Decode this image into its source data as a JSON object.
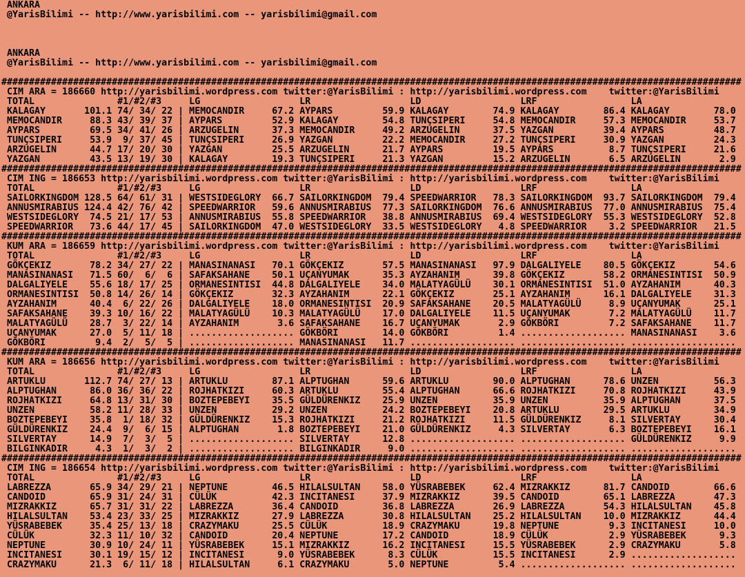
{
  "screen": {
    "background_color": "#E9967A",
    "text_color": "#000000"
  },
  "preamble": {
    "city": "ANKARA",
    "contact": "@YarisBilimi -- http://www.yarisbilimi.com -- yarisbilimi@gmail.com"
  },
  "links": {
    "wordpress_url": "http://yarisbilimi.wordpress.com",
    "twitter": "twitter:@YarisBilimi",
    "title_colon": ":",
    "separator_char": "#"
  },
  "table": {
    "headers": [
      "TOTAL",
      "#1/#2/#3",
      "LG",
      "LR",
      "LD",
      "LRF",
      "LA"
    ],
    "column_keys": [
      "LG",
      "LR",
      "LD",
      "LRF",
      "LA"
    ]
  },
  "sections": [
    {
      "code": "CIM ARA",
      "id": "186660",
      "rows": [
        {
          "name": "KALAGAY",
          "total": "101.1",
          "p": [
            "74",
            "34",
            "22"
          ],
          "LG": [
            "MEMOCANDIR",
            "67.2"
          ],
          "LR": [
            "AYPARS",
            "59.9"
          ],
          "LD": [
            "KALAGAY",
            "74.9"
          ],
          "LRF": [
            "KALAGAY",
            "86.4"
          ],
          "LA": [
            "KALAGAY",
            "78.0"
          ]
        },
        {
          "name": "MEMOCANDIR",
          "total": "88.3",
          "p": [
            "43",
            "39",
            "37"
          ],
          "LG": [
            "AYPARS",
            "52.9"
          ],
          "LR": [
            "KALAGAY",
            "54.8"
          ],
          "LD": [
            "TUNÇSIPERI",
            "54.8"
          ],
          "LRF": [
            "MEMOCANDIR",
            "57.3"
          ],
          "LA": [
            "MEMOCANDIR",
            "53.7"
          ]
        },
        {
          "name": "AYPARS",
          "total": "69.5",
          "p": [
            "34",
            "41",
            "26"
          ],
          "LG": [
            "ARZUGELIN",
            "37.3"
          ],
          "LR": [
            "MEMOCANDIR",
            "49.2"
          ],
          "LD": [
            "ARZUGELIN",
            "37.5"
          ],
          "LRF": [
            "YAZGAN",
            "39.4"
          ],
          "LA": [
            "AYPARS",
            "48.7"
          ]
        },
        {
          "name": "TUNÇSIPERI",
          "total": "53.9",
          "p": [
            "9",
            "37",
            "45"
          ],
          "LG": [
            "TUNÇSIPERI",
            "26.9"
          ],
          "LR": [
            "YAZGAN",
            "22.2"
          ],
          "LD": [
            "MEMOCANDIR",
            "27.2"
          ],
          "LRF": [
            "TUNÇSIPERI",
            "30.9"
          ],
          "LA": [
            "YAZGAN",
            "24.3"
          ]
        },
        {
          "name": "ARZUGELIN",
          "total": "44.7",
          "p": [
            "17",
            "20",
            "30"
          ],
          "LG": [
            "YAZGAN",
            "25.5"
          ],
          "LR": [
            "ARZUGELIN",
            "21.7"
          ],
          "LD": [
            "AYPARS",
            "19.5"
          ],
          "LRF": [
            "AYPARS",
            "8.7"
          ],
          "LA": [
            "TUNÇSIPERI",
            "21.6"
          ]
        },
        {
          "name": "YAZGAN",
          "total": "43.5",
          "p": [
            "13",
            "19",
            "30"
          ],
          "LG": [
            "KALAGAY",
            "19.3"
          ],
          "LR": [
            "TUNÇSIPERI",
            "21.3"
          ],
          "LD": [
            "YAZGAN",
            "15.2"
          ],
          "LRF": [
            "ARZUGELIN",
            "6.5"
          ],
          "LA": [
            "ARZUGELIN",
            "2.9"
          ]
        }
      ]
    },
    {
      "code": "CIM ING",
      "id": "186653",
      "rows": [
        {
          "name": "SAILORKINGDOM",
          "total": "128.5",
          "p": [
            "64",
            "61",
            "31"
          ],
          "LG": [
            "WESTSIDEGLORY",
            "66.7"
          ],
          "LR": [
            "SAILORKINGDOM",
            "79.4"
          ],
          "LD": [
            "SPEEDWARRIOR",
            "78.3"
          ],
          "LRF": [
            "SAILORKINGDOM",
            "93.7"
          ],
          "LA": [
            "SAILORKINGDOM",
            "79.4"
          ]
        },
        {
          "name": "ANNUSMIRABIUS",
          "total": "124.4",
          "p": [
            "42",
            "76",
            "42"
          ],
          "LG": [
            "SPEEDWARRIOR",
            "59.6"
          ],
          "LR": [
            "ANNUSMIRABIUS",
            "77.3"
          ],
          "LD": [
            "SAILORKINGDOM",
            "76.6"
          ],
          "LRF": [
            "ANNUSMIRABIUS",
            "77.0"
          ],
          "LA": [
            "ANNUSMIRABIUS",
            "75.4"
          ]
        },
        {
          "name": "WESTSIDEGLORY",
          "total": "74.5",
          "p": [
            "21",
            "17",
            "53"
          ],
          "LG": [
            "ANNUSMIRABIUS",
            "55.8"
          ],
          "LR": [
            "SPEEDWARRIOR",
            "38.8"
          ],
          "LD": [
            "ANNUSMIRABIUS",
            "69.4"
          ],
          "LRF": [
            "WESTSIDEGLORY",
            "55.3"
          ],
          "LA": [
            "WESTSIDEGLORY",
            "52.8"
          ]
        },
        {
          "name": "SPEEDWARRIOR",
          "total": "73.6",
          "p": [
            "44",
            "17",
            "45"
          ],
          "LG": [
            "SAILORKINGDOM",
            "47.0"
          ],
          "LR": [
            "WESTSIDEGLORY",
            "33.5"
          ],
          "LD": [
            "WESTSIDEGLORY",
            "4.8"
          ],
          "LRF": [
            "SPEEDWARRIOR",
            "3.2"
          ],
          "LA": [
            "SPEEDWARRIOR",
            "21.5"
          ]
        }
      ]
    },
    {
      "code": "KUM ARA",
      "id": "186659",
      "rows": [
        {
          "name": "GÖKÇEKIZ",
          "total": "78.2",
          "p": [
            "34",
            "27",
            "22"
          ],
          "LG": [
            "MANASINANASI",
            "70.1"
          ],
          "LR": [
            "GÖKÇEKIZ",
            "57.5"
          ],
          "LD": [
            "MANASINANASI",
            "97.9"
          ],
          "LRF": [
            "DALGALIYELE",
            "80.5"
          ],
          "LA": [
            "GÖKÇEKIZ",
            "54.6"
          ]
        },
        {
          "name": "MANASINANASI",
          "total": "71.5",
          "p": [
            "60",
            "6",
            "6"
          ],
          "LG": [
            "SAFAKSAHANE",
            "50.1"
          ],
          "LR": [
            "UÇANYUMAK",
            "35.3"
          ],
          "LD": [
            "AYZAHANIM",
            "39.8"
          ],
          "LRF": [
            "GÖKÇEKIZ",
            "58.2"
          ],
          "LA": [
            "ORMANESINTISI",
            "50.9"
          ]
        },
        {
          "name": "DALGALIYELE",
          "total": "55.6",
          "p": [
            "18",
            "17",
            "25"
          ],
          "LG": [
            "ORMANESINTISI",
            "44.8"
          ],
          "LR": [
            "DALGALIYELE",
            "34.0"
          ],
          "LD": [
            "MALATYAGÜLÜ",
            "30.1"
          ],
          "LRF": [
            "ORMANESINTISI",
            "51.0"
          ],
          "LA": [
            "AYZAHANIM",
            "40.3"
          ]
        },
        {
          "name": "ORMANESINTISI",
          "total": "50.8",
          "p": [
            "14",
            "26",
            "14"
          ],
          "LG": [
            "GÖKÇEKIZ",
            "32.3"
          ],
          "LR": [
            "AYZAHANIM",
            "22.1"
          ],
          "LD": [
            "GÖKÇEKIZ",
            "25.1"
          ],
          "LRF": [
            "AYZAHANIM",
            "16.1"
          ],
          "LA": [
            "DALGALIYELE",
            "31.3"
          ]
        },
        {
          "name": "AYZAHANIM",
          "total": "40.4",
          "p": [
            "6",
            "22",
            "26"
          ],
          "LG": [
            "DALGALIYELE",
            "18.0"
          ],
          "LR": [
            "ORMANESINTISI",
            "20.9"
          ],
          "LD": [
            "SAFAKSAHANE",
            "20.5"
          ],
          "LRF": [
            "MALATYAGÜLÜ",
            "8.9"
          ],
          "LA": [
            "UÇANYUMAK",
            "25.1"
          ]
        },
        {
          "name": "SAFAKSAHANE",
          "total": "39.3",
          "p": [
            "10",
            "16",
            "22"
          ],
          "LG": [
            "MALATYAGÜLÜ",
            "10.3"
          ],
          "LR": [
            "MALATYAGÜLÜ",
            "17.0"
          ],
          "LD": [
            "DALGALIYELE",
            "11.5"
          ],
          "LRF": [
            "UÇANYUMAK",
            "7.2"
          ],
          "LA": [
            "MALATYAGÜLÜ",
            "11.7"
          ]
        },
        {
          "name": "MALATYAGÜLÜ",
          "total": "28.7",
          "p": [
            "3",
            "22",
            "14"
          ],
          "LG": [
            "AYZAHANIM",
            "3.6"
          ],
          "LR": [
            "SAFAKSAHANE",
            "16.7"
          ],
          "LD": [
            "UÇANYUMAK",
            "2.9"
          ],
          "LRF": [
            "GÖKBÖRI",
            "7.2"
          ],
          "LA": [
            "SAFAKSAHANE",
            "11.7"
          ]
        },
        {
          "name": "UÇANYUMAK",
          "total": "27.0",
          "p": [
            "5",
            "11",
            "18"
          ],
          "LG": null,
          "LR": [
            "GÖKBÖRI",
            "14.0"
          ],
          "LD": [
            "GÖKBÖRI",
            "1.4"
          ],
          "LRF": null,
          "LA": [
            "MANASINANASI",
            "3.6"
          ]
        },
        {
          "name": "GÖKBÖRI",
          "total": "9.4",
          "p": [
            "2",
            "5",
            "5"
          ],
          "LG": null,
          "LR": [
            "MANASINANASI",
            "11.7"
          ],
          "LD": null,
          "LRF": null,
          "LA": null
        }
      ]
    },
    {
      "code": "KUM ARA",
      "id": "186656",
      "rows": [
        {
          "name": "ARTUKLU",
          "total": "112.7",
          "p": [
            "74",
            "27",
            "13"
          ],
          "LG": [
            "ARTUKLU",
            "87.1"
          ],
          "LR": [
            "ALPTUGHAN",
            "59.6"
          ],
          "LD": [
            "ARTUKLU",
            "90.0"
          ],
          "LRF": [
            "ALPTUGHAN",
            "78.6"
          ],
          "LA": [
            "UNZEN",
            "56.3"
          ]
        },
        {
          "name": "ALPTUGHAN",
          "total": "86.0",
          "p": [
            "36",
            "36",
            "22"
          ],
          "LG": [
            "ROJHATKIZI",
            "60.3"
          ],
          "LR": [
            "ARTUKLU",
            "55.4"
          ],
          "LD": [
            "ALPTUGHAN",
            "66.6"
          ],
          "LRF": [
            "ROJHATKIZI",
            "70.8"
          ],
          "LA": [
            "ROJHATKIZI",
            "43.9"
          ]
        },
        {
          "name": "ROJHATKIZI",
          "total": "64.8",
          "p": [
            "13",
            "31",
            "30"
          ],
          "LG": [
            "BOZTEPEBEYI",
            "35.5"
          ],
          "LR": [
            "GÜLDÜRENKIZ",
            "25.9"
          ],
          "LD": [
            "UNZEN",
            "35.9"
          ],
          "LRF": [
            "UNZEN",
            "35.9"
          ],
          "LA": [
            "ALPTUGHAN",
            "37.5"
          ]
        },
        {
          "name": "UNZEN",
          "total": "58.2",
          "p": [
            "11",
            "28",
            "33"
          ],
          "LG": [
            "UNZEN",
            "29.2"
          ],
          "LR": [
            "UNZEN",
            "24.2"
          ],
          "LD": [
            "BOZTEPEBEYI",
            "20.8"
          ],
          "LRF": [
            "ARTUKLU",
            "29.5"
          ],
          "LA": [
            "ARTUKLU",
            "34.9"
          ]
        },
        {
          "name": "BOZTEPEBEYI",
          "total": "35.8",
          "p": [
            "1",
            "18",
            "32"
          ],
          "LG": [
            "GÜLDÜRENKIZ",
            "15.3"
          ],
          "LR": [
            "ROJHATKIZI",
            "21.2"
          ],
          "LD": [
            "ROJHATKIZI",
            "11.5"
          ],
          "LRF": [
            "GÜLDÜRENKIZ",
            "8.1"
          ],
          "LA": [
            "SILVERTAY",
            "30.4"
          ]
        },
        {
          "name": "GÜLDÜRENKIZ",
          "total": "24.4",
          "p": [
            "9",
            "6",
            "15"
          ],
          "LG": [
            "ALPTUGHAN",
            "1.8"
          ],
          "LR": [
            "BOZTEPEBEYI",
            "21.0"
          ],
          "LD": [
            "GÜLDÜRENKIZ",
            "4.3"
          ],
          "LRF": [
            "SILVERTAY",
            "6.3"
          ],
          "LA": [
            "BOZTEPEBEYI",
            "16.1"
          ]
        },
        {
          "name": "SILVERTAY",
          "total": "14.9",
          "p": [
            "7",
            "3",
            "5"
          ],
          "LG": null,
          "LR": [
            "SILVERTAY",
            "12.8"
          ],
          "LD": null,
          "LRF": null,
          "LA": [
            "GÜLDÜRENKIZ",
            "9.9"
          ]
        },
        {
          "name": "BILGINKADIR",
          "total": "4.3",
          "p": [
            "1",
            "3",
            "2"
          ],
          "LG": null,
          "LR": [
            "BILGINKADIR",
            "9.0"
          ],
          "LD": null,
          "LRF": null,
          "LA": null
        }
      ]
    },
    {
      "code": "CIM ING",
      "id": "186654",
      "rows": [
        {
          "name": "LABREZZA",
          "total": "65.9",
          "p": [
            "34",
            "29",
            "21"
          ],
          "LG": [
            "NEPTUNE",
            "46.5"
          ],
          "LR": [
            "HILALSULTAN",
            "58.0"
          ],
          "LD": [
            "YÜSRABEBEK",
            "62.4"
          ],
          "LRF": [
            "MIZRAKKIZ",
            "81.7"
          ],
          "LA": [
            "CANDOID",
            "66.6"
          ]
        },
        {
          "name": "CANDOID",
          "total": "65.9",
          "p": [
            "31",
            "24",
            "31"
          ],
          "LG": [
            "CÜLÜK",
            "42.3"
          ],
          "LR": [
            "INCITANESI",
            "37.9"
          ],
          "LD": [
            "MIZRAKKIZ",
            "39.5"
          ],
          "LRF": [
            "CANDOID",
            "65.1"
          ],
          "LA": [
            "LABREZZA",
            "47.3"
          ]
        },
        {
          "name": "MIZRAKKIZ",
          "total": "65.7",
          "p": [
            "31",
            "31",
            "22"
          ],
          "LG": [
            "LABREZZA",
            "36.4"
          ],
          "LR": [
            "CANDOID",
            "36.8"
          ],
          "LD": [
            "LABREZZA",
            "26.9"
          ],
          "LRF": [
            "LABREZZA",
            "54.3"
          ],
          "LA": [
            "HILALSULTAN",
            "45.8"
          ]
        },
        {
          "name": "HILALSULTAN",
          "total": "53.4",
          "p": [
            "23",
            "33",
            "25"
          ],
          "LG": [
            "MIZRAKKIZ",
            "27.9"
          ],
          "LR": [
            "LABREZZA",
            "30.8"
          ],
          "LD": [
            "HILALSULTAN",
            "25.2"
          ],
          "LRF": [
            "HILALSULTAN",
            "10.0"
          ],
          "LA": [
            "MIZRAKKIZ",
            "44.4"
          ]
        },
        {
          "name": "YÜSRABEBEK",
          "total": "35.4",
          "p": [
            "25",
            "13",
            "18"
          ],
          "LG": [
            "CRAZYMAKU",
            "25.5"
          ],
          "LR": [
            "CÜLÜK",
            "18.9"
          ],
          "LD": [
            "CRAZYMAKU",
            "19.8"
          ],
          "LRF": [
            "NEPTUNE",
            "9.3"
          ],
          "LA": [
            "INCITANESI",
            "10.0"
          ]
        },
        {
          "name": "CÜLÜK",
          "total": "32.3",
          "p": [
            "11",
            "10",
            "32"
          ],
          "LG": [
            "CANDOID",
            "20.4"
          ],
          "LR": [
            "NEPTUNE",
            "17.2"
          ],
          "LD": [
            "CANDOID",
            "18.9"
          ],
          "LRF": [
            "CÜLÜK",
            "2.9"
          ],
          "LA": [
            "YÜSRABEBEK",
            "9.3"
          ]
        },
        {
          "name": "NEPTUNE",
          "total": "30.9",
          "p": [
            "10",
            "24",
            "11"
          ],
          "LG": [
            "YÜSRABEBEK",
            "15.1"
          ],
          "LR": [
            "MIZRAKKIZ",
            "16.2"
          ],
          "LD": [
            "INCITANESI",
            "15.5"
          ],
          "LRF": [
            "YÜSRABEBEK",
            "2.9"
          ],
          "LA": [
            "CRAZYMAKU",
            "5.8"
          ]
        },
        {
          "name": "INCITANESI",
          "total": "30.1",
          "p": [
            "19",
            "15",
            "12"
          ],
          "LG": [
            "INCITANESI",
            "9.0"
          ],
          "LR": [
            "YÜSRABEBEK",
            "8.3"
          ],
          "LD": [
            "CÜLÜK",
            "15.5"
          ],
          "LRF": [
            "INCITANESI",
            "2.9"
          ],
          "LA": null
        },
        {
          "name": "CRAZYMAKU",
          "total": "21.3",
          "p": [
            "6",
            "11",
            "18"
          ],
          "LG": [
            "HILALSULTAN",
            "6.1"
          ],
          "LR": [
            "CRAZYMAKU",
            "5.0"
          ],
          "LD": [
            "NEPTUNE",
            "5.4"
          ],
          "LRF": null,
          "LA": null
        }
      ]
    }
  ]
}
